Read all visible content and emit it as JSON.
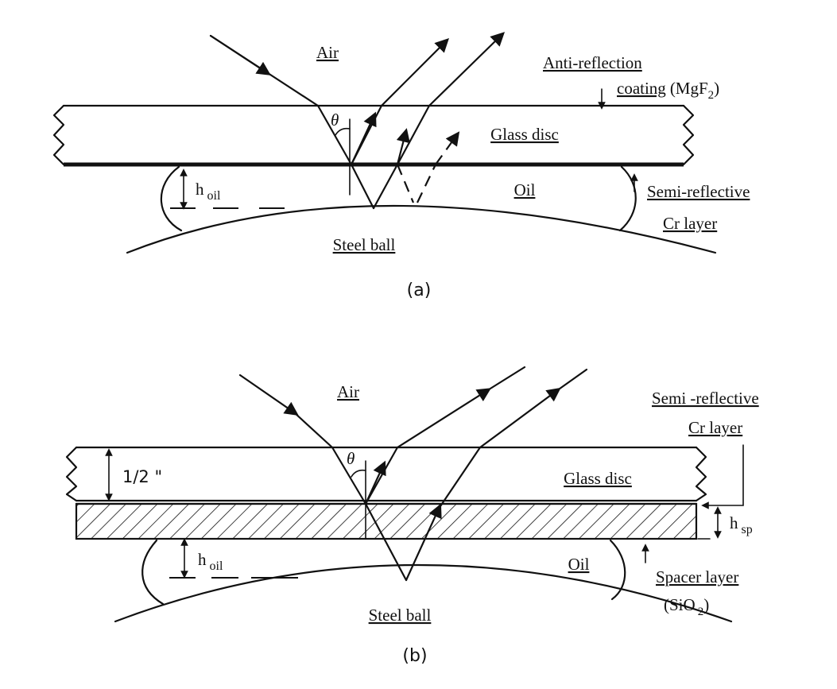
{
  "panel_a": {
    "air": "Air",
    "anti_reflection_line1": "Anti-reflection",
    "coating_word": "coating",
    "mgf_prefix": "(MgF",
    "mgf_sub": "2",
    "mgf_suffix": ")",
    "glass_disc": "Glass disc",
    "oil": "Oil",
    "h_main": "h",
    "h_sub": "oil",
    "theta": "θ",
    "semi_reflective": "Semi-reflective",
    "cr_layer": "Cr layer",
    "steel_ball": "Steel ball",
    "caption": "(a)"
  },
  "panel_b": {
    "air": "Air",
    "semi_reflective": "Semi -reflective",
    "cr_layer": "Cr layer",
    "thickness": "1/2 \"",
    "theta": "θ",
    "glass_disc": "Glass disc",
    "h_sp_main": "h",
    "h_sp_sub": "sp",
    "h_oil_main": "h",
    "h_oil_sub": "oil",
    "oil": "Oil",
    "spacer_layer": "Spacer layer",
    "sio_prefix": "(SiO",
    "sio_sub": "2",
    "sio_suffix": ")",
    "steel_ball": "Steel ball",
    "caption": "(b)"
  }
}
